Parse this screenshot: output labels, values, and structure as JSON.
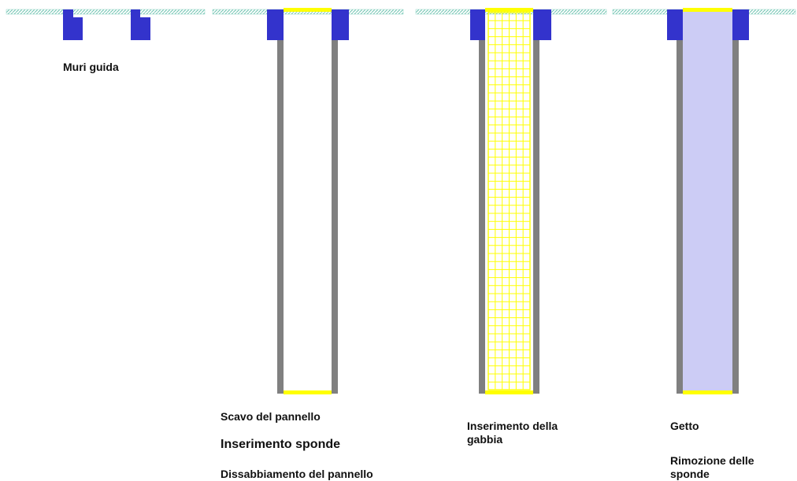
{
  "colors": {
    "ground": "#8fd3c5",
    "guide_wall": "#3333cc",
    "side_wall": "#808080",
    "yellow": "#ffff00",
    "concrete": "#ccccf5",
    "background": "#ffffff"
  },
  "stages": [
    {
      "name": "guide-walls",
      "lines": [
        "Muri guida"
      ]
    },
    {
      "name": "excavation",
      "lines": [
        "Scavo del pannello",
        "Inserimento sponde",
        "Dissabbiamento del pannello"
      ]
    },
    {
      "name": "cage-insertion",
      "lines": [
        "Inserimento della",
        "gabbia"
      ]
    },
    {
      "name": "casting",
      "lines": [
        "Getto"
      ],
      "extra": [
        "Rimozione delle",
        "sponde"
      ]
    }
  ]
}
